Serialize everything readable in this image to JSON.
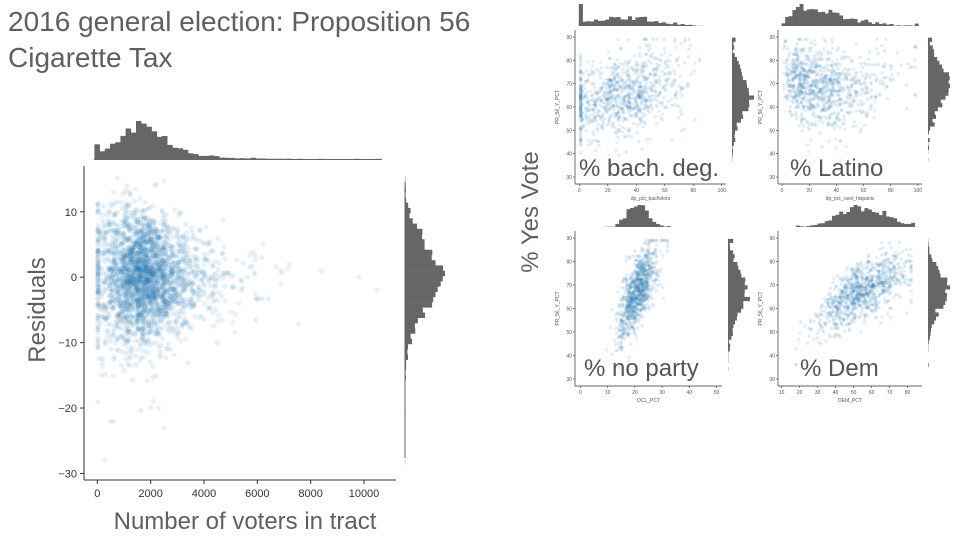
{
  "slide": {
    "title": "2016 general election: Proposition 56 Cigarette Tax",
    "shared_ylabel": "% Yes Vote"
  },
  "colors": {
    "points": "#1f77b4",
    "hist": "#666666",
    "axis": "#333333"
  },
  "chart_data": [
    {
      "type": "scatter",
      "xlabel": "Number of voters in tract",
      "ylabel": "Residuals",
      "xlim": [
        -500,
        11200
      ],
      "ylim": [
        -31,
        17
      ],
      "x_ticks": [
        0,
        2000,
        4000,
        6000,
        8000,
        10000
      ],
      "y_ticks": [
        -30,
        -20,
        -10,
        0,
        10
      ],
      "point_cloud": {
        "x_center": 1500,
        "x_spread": 800,
        "y_center": 0,
        "y_spread": 4.5,
        "n": 2600
      },
      "outliers": [
        {
          "x": 500,
          "y": -22
        },
        {
          "x": 300,
          "y": -28
        },
        {
          "x": 2100,
          "y": -19
        },
        {
          "x": 2300,
          "y": -20
        },
        {
          "x": 2500,
          "y": -23
        },
        {
          "x": 2000,
          "y": -20
        },
        {
          "x": 150,
          "y": -15
        },
        {
          "x": 4500,
          "y": -10
        },
        {
          "x": 6200,
          "y": 5
        },
        {
          "x": 7200,
          "y": 2
        },
        {
          "x": 8400,
          "y": 1
        },
        {
          "x": 9800,
          "y": 0
        },
        {
          "x": 10500,
          "y": -2
        },
        {
          "x": 6900,
          "y": -1
        },
        {
          "x": 5300,
          "y": -4
        },
        {
          "x": 600,
          "y": 13
        },
        {
          "x": 1100,
          "y": 14
        },
        {
          "x": 200,
          "y": -13
        }
      ],
      "marginal_histograms": true
    },
    {
      "type": "scatter",
      "caption": "% bach. deg.",
      "xlabel": "dp_pct_bachelors",
      "ylabel": "PR_56_Y_PCT",
      "xlim": [
        -3,
        103
      ],
      "ylim": [
        27,
        93
      ],
      "x_ticks": [
        0,
        20,
        40,
        60,
        80,
        100
      ],
      "y_ticks": [
        30,
        40,
        50,
        60,
        70,
        80,
        90
      ],
      "trend": [
        [
          5,
          62
        ],
        [
          40,
          66
        ],
        [
          85,
          78
        ]
      ],
      "spread": 9,
      "marginal_histograms": true
    },
    {
      "type": "scatter",
      "caption": "% Latino",
      "xlabel": "dp_pct_race_hispanic",
      "ylabel": "PR_56_Y_PCT",
      "xlim": [
        -3,
        103
      ],
      "ylim": [
        27,
        93
      ],
      "x_ticks": [
        0,
        20,
        40,
        60,
        80,
        100
      ],
      "y_ticks": [
        30,
        40,
        50,
        60,
        70,
        80,
        90
      ],
      "trend": [
        [
          2,
          72
        ],
        [
          40,
          66
        ],
        [
          95,
          74
        ]
      ],
      "spread": 9,
      "marginal_histograms": true
    },
    {
      "type": "scatter",
      "caption": "% no party",
      "xlabel": "OCL_PCT",
      "ylabel": "PR_56_Y_PCT",
      "xlim": [
        -2,
        52
      ],
      "ylim": [
        27,
        93
      ],
      "x_ticks": [
        0,
        10,
        20,
        30,
        40,
        50
      ],
      "y_ticks": [
        30,
        40,
        50,
        60,
        70,
        80,
        90
      ],
      "trend": [
        [
          14,
          52
        ],
        [
          21,
          68
        ],
        [
          28,
          80
        ]
      ],
      "spread": 7,
      "marginal_histograms": true
    },
    {
      "type": "scatter",
      "caption": "% Dem",
      "xlabel": "DEM_PCT",
      "ylabel": "PR_56_Y_PCT",
      "xlim": [
        8,
        88
      ],
      "ylim": [
        27,
        93
      ],
      "x_ticks": [
        10,
        20,
        30,
        40,
        50,
        60,
        70,
        80
      ],
      "y_ticks": [
        30,
        40,
        50,
        60,
        70,
        80,
        90
      ],
      "trend": [
        [
          20,
          47
        ],
        [
          45,
          64
        ],
        [
          75,
          75
        ]
      ],
      "spread": 6,
      "marginal_histograms": true
    }
  ]
}
